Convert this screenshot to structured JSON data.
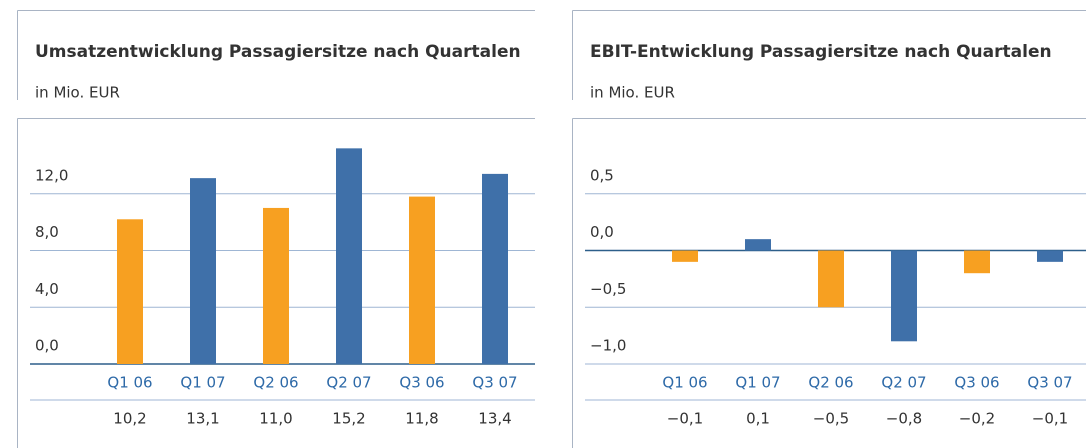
{
  "chart_data": [
    {
      "type": "bar",
      "title": "Umsatzentwicklung Passagiersitze nach Quartalen",
      "subtitle": "in Mio. EUR",
      "categories": [
        "Q1 06",
        "Q1 07",
        "Q2 06",
        "Q2 07",
        "Q3 06",
        "Q3 07"
      ],
      "values": [
        10.2,
        13.1,
        11.0,
        15.2,
        11.8,
        13.4
      ],
      "value_labels": [
        "10,2",
        "13,1",
        "11,0",
        "15,2",
        "11,8",
        "13,4"
      ],
      "colors": [
        "#f7a021",
        "#3f70a9",
        "#f7a021",
        "#3f70a9",
        "#f7a021",
        "#3f70a9"
      ],
      "ylim": [
        0,
        16
      ],
      "yticks": [
        {
          "value": 0,
          "label": "0,0"
        },
        {
          "value": 4,
          "label": "4,0"
        },
        {
          "value": 8,
          "label": "8,0"
        },
        {
          "value": 12,
          "label": "12,0"
        }
      ],
      "grid": true
    },
    {
      "type": "bar",
      "title": "EBIT-Entwicklung Passagiersitze nach Quartalen",
      "subtitle": "in Mio. EUR",
      "categories": [
        "Q1 06",
        "Q1 07",
        "Q2 06",
        "Q2 07",
        "Q3 06",
        "Q3 07"
      ],
      "values": [
        -0.1,
        0.1,
        -0.5,
        -0.8,
        -0.2,
        -0.1
      ],
      "value_labels": [
        "−0,1",
        "0,1",
        "−0,5",
        "−0,8",
        "−0,2",
        "−0,1"
      ],
      "colors": [
        "#f7a021",
        "#3f70a9",
        "#f7a021",
        "#3f70a9",
        "#f7a021",
        "#3f70a9"
      ],
      "ylim": [
        -1.0,
        1.0
      ],
      "yticks": [
        {
          "value": -1.0,
          "label": "−1,0"
        },
        {
          "value": -0.5,
          "label": "−0,5"
        },
        {
          "value": 0,
          "label": "0,0"
        },
        {
          "value": 0.5,
          "label": "0,5"
        }
      ],
      "grid": true
    }
  ]
}
